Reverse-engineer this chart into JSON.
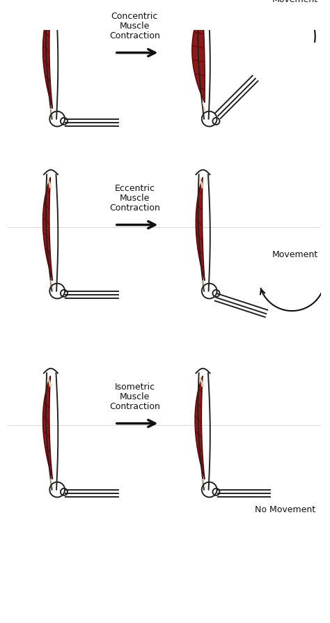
{
  "bg_color": "#ffffff",
  "line_color": "#222222",
  "muscle_fill": "#8B1A1A",
  "muscle_edge": "#5a0000",
  "fiber_color": "#6b0000",
  "tendon_color": "#e8d0b0",
  "arrow_color": "#111111",
  "text_color": "#111111",
  "labels": {
    "row0": [
      "Concentric",
      "Muscle",
      "Contraction"
    ],
    "row1": [
      "Eccentric",
      "Muscle",
      "Contraction"
    ],
    "row2": [
      "Isometric",
      "Muscle",
      "Contraction"
    ]
  },
  "movement_labels": {
    "row0": "Movement",
    "row1": "Movement",
    "row2": "No Movement"
  },
  "font_size_label": 9,
  "font_size_movement": 9
}
